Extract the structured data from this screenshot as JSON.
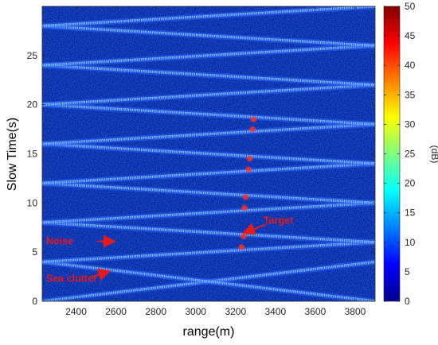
{
  "chart_data": {
    "type": "heatmap",
    "xlabel": "range(m)",
    "ylabel": "Slow Time(s)",
    "xlim": [
      2230,
      3900
    ],
    "ylim": [
      0,
      30
    ],
    "x_ticks": [
      "2400",
      "2600",
      "2800",
      "3000",
      "3200",
      "3400",
      "3600",
      "3800"
    ],
    "y_ticks": [
      "0",
      "5",
      "10",
      "15",
      "20",
      "25"
    ],
    "colorbar": {
      "label": "(dB)",
      "range": [
        0,
        50
      ],
      "ticks": [
        "0",
        "5",
        "10",
        "15",
        "20",
        "25",
        "30",
        "35",
        "40",
        "45",
        "50"
      ],
      "colormap": "jet"
    },
    "background_level_db": 6,
    "clutter_bands": [
      {
        "x": [
          2230,
          3900
        ],
        "t": [
          0.0,
          4.0
        ]
      },
      {
        "x": [
          2230,
          3900
        ],
        "t": [
          4.0,
          0.0
        ]
      },
      {
        "x": [
          2230,
          3900
        ],
        "t": [
          4.0,
          6.0
        ]
      },
      {
        "x": [
          2230,
          3900
        ],
        "t": [
          8.0,
          6.0
        ]
      },
      {
        "x": [
          2230,
          3900
        ],
        "t": [
          8.0,
          10.0
        ]
      },
      {
        "x": [
          2230,
          3900
        ],
        "t": [
          12.0,
          10.0
        ]
      },
      {
        "x": [
          2230,
          3900
        ],
        "t": [
          12.0,
          14.0
        ]
      },
      {
        "x": [
          2230,
          3900
        ],
        "t": [
          16.0,
          14.0
        ]
      },
      {
        "x": [
          2230,
          3900
        ],
        "t": [
          16.0,
          18.0
        ]
      },
      {
        "x": [
          2230,
          3900
        ],
        "t": [
          20.0,
          18.0
        ]
      },
      {
        "x": [
          2230,
          3900
        ],
        "t": [
          20.0,
          22.0
        ]
      },
      {
        "x": [
          2230,
          3900
        ],
        "t": [
          24.0,
          22.0
        ]
      },
      {
        "x": [
          2230,
          3900
        ],
        "t": [
          24.0,
          26.0
        ]
      },
      {
        "x": [
          2230,
          3900
        ],
        "t": [
          28.0,
          26.0
        ]
      },
      {
        "x": [
          2230,
          3900
        ],
        "t": [
          28.0,
          30.0
        ]
      }
    ],
    "target_points": [
      {
        "x": 3230,
        "t": 5.5
      },
      {
        "x": 3240,
        "t": 6.6
      },
      {
        "x": 3245,
        "t": 9.5
      },
      {
        "x": 3250,
        "t": 10.6
      },
      {
        "x": 3265,
        "t": 13.4
      },
      {
        "x": 3270,
        "t": 14.5
      },
      {
        "x": 3285,
        "t": 17.5
      },
      {
        "x": 3290,
        "t": 18.5
      }
    ],
    "annotations": [
      {
        "text": "Target",
        "text_at": [
          3340,
          7.9
        ],
        "arrow_from": [
          3350,
          7.8
        ],
        "arrow_to": [
          3248,
          7.0
        ]
      },
      {
        "text": "Noise",
        "text_at": [
          2250,
          5.8
        ],
        "arrow_from": [
          2505,
          6.1
        ],
        "arrow_to": [
          2585,
          6.1
        ]
      },
      {
        "text": "Sea clutter",
        "text_at": [
          2250,
          2.0
        ],
        "arrow_from": [
          2480,
          2.5
        ],
        "arrow_to": [
          2560,
          3.0
        ]
      }
    ],
    "annotation_color": "#e6191b",
    "grid": false
  }
}
